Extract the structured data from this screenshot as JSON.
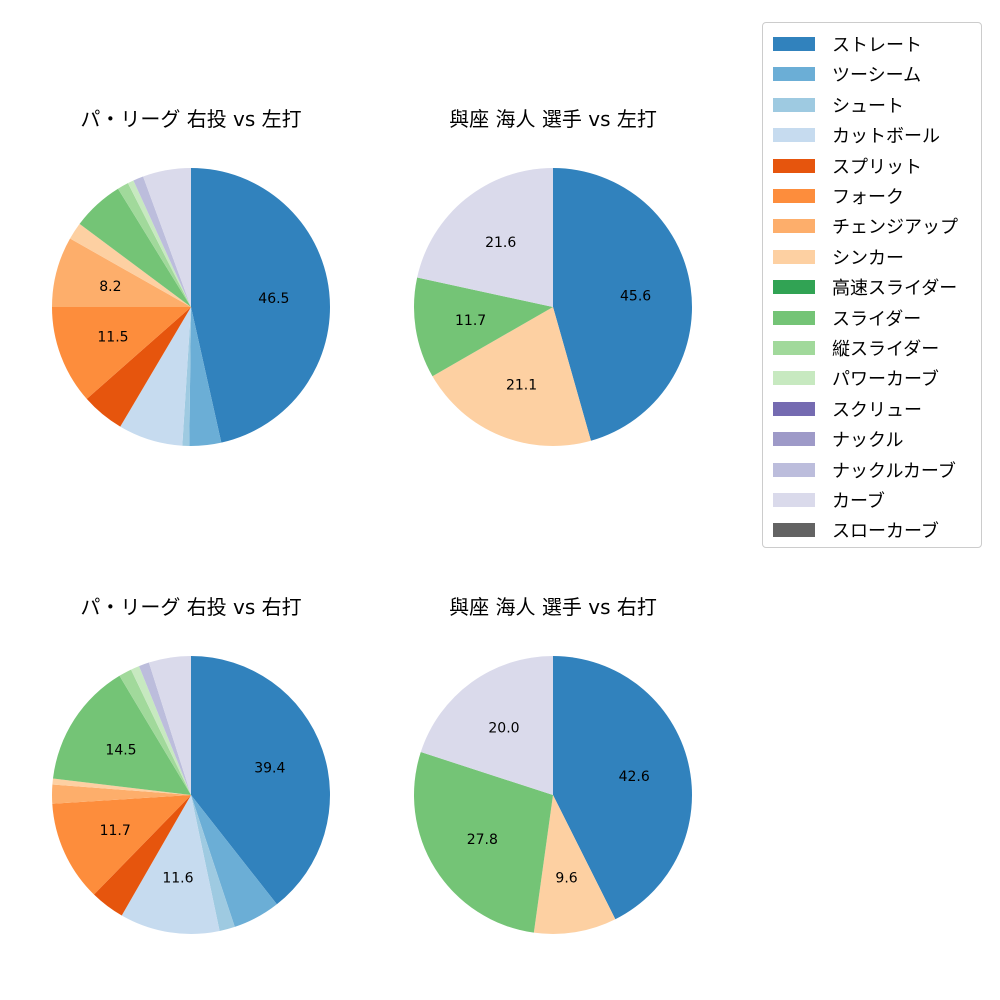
{
  "colors": {
    "ストレート": "#3182bd",
    "ツーシーム": "#6baed6",
    "シュート": "#9ecae1",
    "カットボール": "#c6dbef",
    "スプリット": "#e6550d",
    "フォーク": "#fd8d3c",
    "チェンジアップ": "#fdae6b",
    "シンカー": "#fdd0a2",
    "高速スライダー": "#31a354",
    "スライダー": "#74c476",
    "縦スライダー": "#a1d99b",
    "パワーカーブ": "#c7e9c0",
    "スクリュー": "#756bb1",
    "ナックル": "#9e9ac8",
    "ナックルカーブ": "#bcbddc",
    "カーブ": "#dadaeb",
    "スローカーブ": "#636363"
  },
  "legend": {
    "items": [
      {
        "label": "ストレート",
        "color": "#3182bd"
      },
      {
        "label": "ツーシーム",
        "color": "#6baed6"
      },
      {
        "label": "シュート",
        "color": "#9ecae1"
      },
      {
        "label": "カットボール",
        "color": "#c6dbef"
      },
      {
        "label": "スプリット",
        "color": "#e6550d"
      },
      {
        "label": "フォーク",
        "color": "#fd8d3c"
      },
      {
        "label": "チェンジアップ",
        "color": "#fdae6b"
      },
      {
        "label": "シンカー",
        "color": "#fdd0a2"
      },
      {
        "label": "高速スライダー",
        "color": "#31a354"
      },
      {
        "label": "スライダー",
        "color": "#74c476"
      },
      {
        "label": "縦スライダー",
        "color": "#a1d99b"
      },
      {
        "label": "パワーカーブ",
        "color": "#c7e9c0"
      },
      {
        "label": "スクリュー",
        "color": "#756bb1"
      },
      {
        "label": "ナックル",
        "color": "#9e9ac8"
      },
      {
        "label": "ナックルカーブ",
        "color": "#bcbddc"
      },
      {
        "label": "カーブ",
        "color": "#dadaeb"
      },
      {
        "label": "スローカーブ",
        "color": "#636363"
      }
    ]
  },
  "chart_data": [
    {
      "type": "pie",
      "title": "パ・リーグ 右投 vs 左打",
      "categories": [
        "ストレート",
        "ツーシーム",
        "シュート",
        "カットボール",
        "スプリット",
        "フォーク",
        "チェンジアップ",
        "シンカー",
        "スライダー",
        "縦スライダー",
        "パワーカーブ",
        "ナックルカーブ",
        "カーブ"
      ],
      "values": [
        46.5,
        3.7,
        0.8,
        7.5,
        5.0,
        11.5,
        8.2,
        2.0,
        6.0,
        1.3,
        0.7,
        1.2,
        5.6
      ],
      "labels_shown": [
        "46.5",
        "11.5",
        "8.2"
      ],
      "label_threshold": 8
    },
    {
      "type": "pie",
      "title": "與座 海人 選手 vs 左打",
      "categories": [
        "ストレート",
        "シンカー",
        "スライダー",
        "カーブ"
      ],
      "values": [
        45.6,
        21.1,
        11.7,
        21.6
      ],
      "labels_shown": [
        "45.6",
        "21.1",
        "11.7",
        "21.6"
      ],
      "label_threshold": 8
    },
    {
      "type": "pie",
      "title": "パ・リーグ 右投 vs 右打",
      "categories": [
        "ストレート",
        "ツーシーム",
        "シュート",
        "カットボール",
        "スプリット",
        "フォーク",
        "チェンジアップ",
        "シンカー",
        "スライダー",
        "縦スライダー",
        "パワーカーブ",
        "ナックルカーブ",
        "カーブ"
      ],
      "values": [
        39.4,
        5.5,
        1.8,
        11.6,
        4.0,
        11.7,
        2.2,
        0.7,
        14.5,
        1.5,
        1.0,
        1.2,
        4.9
      ],
      "labels_shown": [
        "39.4",
        "11.6",
        "11.7",
        "14.5"
      ],
      "label_threshold": 8
    },
    {
      "type": "pie",
      "title": "與座 海人 選手 vs 右打",
      "categories": [
        "ストレート",
        "シンカー",
        "スライダー",
        "カーブ"
      ],
      "values": [
        42.6,
        9.6,
        27.8,
        20.0
      ],
      "labels_shown": [
        "42.6",
        "9.6",
        "27.8",
        "20.0"
      ],
      "label_threshold": 8
    }
  ],
  "panels": [
    {
      "title": "パ・リーグ 右投 vs 左打"
    },
    {
      "title": "與座 海人 選手 vs 左打"
    },
    {
      "title": "パ・リーグ 右投 vs 右打"
    },
    {
      "title": "與座 海人 選手 vs 右打"
    }
  ]
}
